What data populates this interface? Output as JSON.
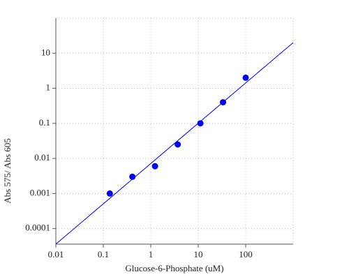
{
  "chart_data": {
    "type": "scatter",
    "log_x": true,
    "log_y": true,
    "grid": true,
    "x_label": "Glucose-6-Phosphate (uM)",
    "y_label": "Abs 575/ Abs 605",
    "xlim": [
      0.01,
      1000
    ],
    "xticks": [
      0.01,
      0.1,
      1,
      10,
      100
    ],
    "ylim": [
      3.6e-05,
      100
    ],
    "yticks": [
      0.0001,
      0.001,
      0.01,
      0.1,
      1,
      10
    ],
    "series": [
      {
        "kind": "points",
        "color": "#0000ee",
        "x": [
          0.137,
          0.41,
          1.23,
          3.7,
          11.1,
          33.3,
          100
        ],
        "values": [
          0.001,
          0.003,
          0.006,
          0.025,
          0.1,
          0.4,
          2
        ]
      },
      {
        "kind": "line",
        "color": "#0000ee",
        "x": [
          0.01,
          1000
        ],
        "values": [
          3.6e-05,
          20
        ]
      }
    ]
  }
}
